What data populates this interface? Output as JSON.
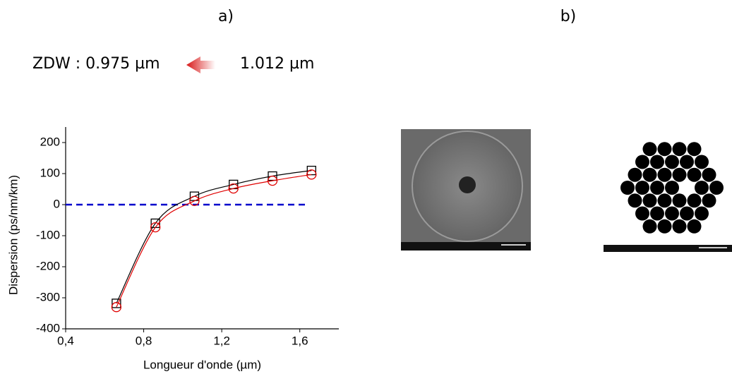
{
  "panel_a": "a)",
  "panel_b": "b)",
  "zdw_text": "ZDW : 0.975 µm",
  "zdw_new_text": "1.012 µm",
  "chart_data": {
    "type": "line",
    "x_label": "Longueur d'onde (µm)",
    "y_label": "Dispersion (ps/nm/km)",
    "x": [
      0.66,
      0.86,
      1.06,
      1.26,
      1.46,
      1.66
    ],
    "series": [
      {
        "color": "#000000",
        "marker": "square",
        "values": [
          -318,
          -60,
          27,
          65,
          92,
          110
        ]
      },
      {
        "color": "#e00000",
        "marker": "circle",
        "values": [
          -330,
          -73,
          12,
          52,
          77,
          97
        ]
      }
    ],
    "reference_line": {
      "value": 0,
      "x_range": [
        0.4,
        1.63
      ],
      "color": "#0000cc"
    },
    "xlim": [
      0.4,
      1.8
    ],
    "ylim": [
      -400,
      250
    ],
    "xticks": [
      {
        "value": 0.4,
        "label": "0,4"
      },
      {
        "value": 0.8,
        "label": "0,8"
      },
      {
        "value": 1.2,
        "label": "1,2"
      },
      {
        "value": 1.6,
        "label": "1,6"
      }
    ],
    "yticks": [
      -400,
      -300,
      -200,
      -100,
      0,
      100,
      200
    ],
    "grid": false
  }
}
